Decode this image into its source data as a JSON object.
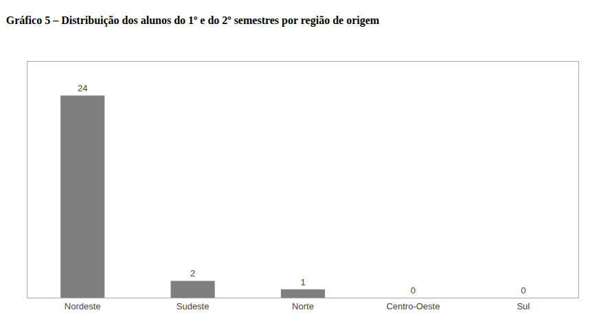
{
  "chart_data": {
    "type": "bar",
    "title": "Gráfico 5 – Distribuição dos alunos do 1º e do 2º semestres por região de origem",
    "categories": [
      "Nordeste",
      "Sudeste",
      "Norte",
      "Centro-Oeste",
      "Sul"
    ],
    "values": [
      24,
      2,
      1,
      0,
      0
    ],
    "color": "#7f7f7f",
    "ylim": [
      0,
      28
    ],
    "grid": false,
    "data_labels": true,
    "tick_labels": "x"
  }
}
